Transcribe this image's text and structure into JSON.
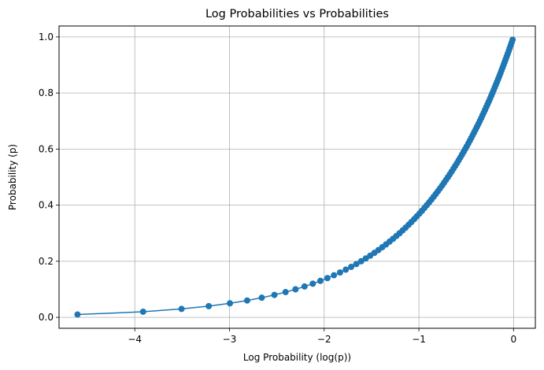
{
  "chart_data": {
    "type": "line",
    "title": "Log Probabilities vs Probabilities",
    "xlabel": "Log Probability (log(p))",
    "ylabel": "Probability (p)",
    "xlim": [
      -4.8,
      0.23
    ],
    "ylim": [
      -0.039,
      1.039
    ],
    "xticks": [
      -4,
      -3,
      -2,
      -1,
      0
    ],
    "xtick_labels": [
      "−4",
      "−3",
      "−2",
      "−1",
      "0"
    ],
    "yticks": [
      0.0,
      0.2,
      0.4,
      0.6,
      0.8,
      1.0
    ],
    "ytick_labels": [
      "0.0",
      "0.2",
      "0.4",
      "0.6",
      "0.8",
      "1.0"
    ],
    "grid": true,
    "marker": "circle",
    "color": "#1f77b4",
    "p_start": 0.01,
    "p_end": 0.99,
    "p_step": 0.01,
    "series": [
      {
        "x_expression": "log(p)",
        "y_expression": "p"
      }
    ]
  }
}
